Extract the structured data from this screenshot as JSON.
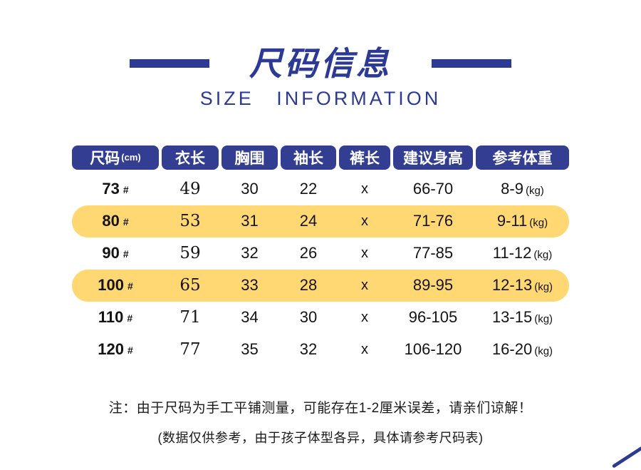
{
  "colors": {
    "primary_blue": "#2c3a96",
    "header_pill_blue": "#333e92",
    "highlight_yellow": "#ffd873"
  },
  "header": {
    "title_zh": "尺码信息",
    "title_en": "SIZE INFORMATION"
  },
  "table": {
    "columns": [
      {
        "title": "尺码",
        "unit": "(cm)"
      },
      {
        "title": "衣长"
      },
      {
        "title": "胸围"
      },
      {
        "title": "袖长"
      },
      {
        "title": "裤长"
      },
      {
        "title": "建议身高"
      },
      {
        "title": "参考体重"
      }
    ],
    "rows": [
      {
        "size": "73",
        "mark": "#",
        "length": "49",
        "chest": "30",
        "sleeve": "22",
        "pants": "x",
        "height": "66-70",
        "weight": "8-9",
        "weight_unit": "(kg)",
        "highlighted": false
      },
      {
        "size": "80",
        "mark": "#",
        "length": "53",
        "chest": "31",
        "sleeve": "24",
        "pants": "x",
        "height": "71-76",
        "weight": "9-11",
        "weight_unit": "(kg)",
        "highlighted": true
      },
      {
        "size": "90",
        "mark": "#",
        "length": "59",
        "chest": "32",
        "sleeve": "26",
        "pants": "x",
        "height": "77-85",
        "weight": "11-12",
        "weight_unit": "(kg)",
        "highlighted": false
      },
      {
        "size": "100",
        "mark": "#",
        "length": "65",
        "chest": "33",
        "sleeve": "28",
        "pants": "x",
        "height": "89-95",
        "weight": "12-13",
        "weight_unit": "(kg)",
        "highlighted": true
      },
      {
        "size": "110",
        "mark": "#",
        "length": "71",
        "chest": "34",
        "sleeve": "30",
        "pants": "x",
        "height": "96-105",
        "weight": "13-15",
        "weight_unit": "(kg)",
        "highlighted": false
      },
      {
        "size": "120",
        "mark": "#",
        "length": "77",
        "chest": "35",
        "sleeve": "32",
        "pants": "x",
        "height": "106-120",
        "weight": "16-20",
        "weight_unit": "(kg)",
        "highlighted": false
      }
    ]
  },
  "notes": {
    "line1": "注：由于尺码为手工平铺测量，可能存在1-2厘米误差，请亲们谅解！",
    "line2": "(数据仅供参考，由于孩子体型各异，具体请参考尺码表)"
  }
}
